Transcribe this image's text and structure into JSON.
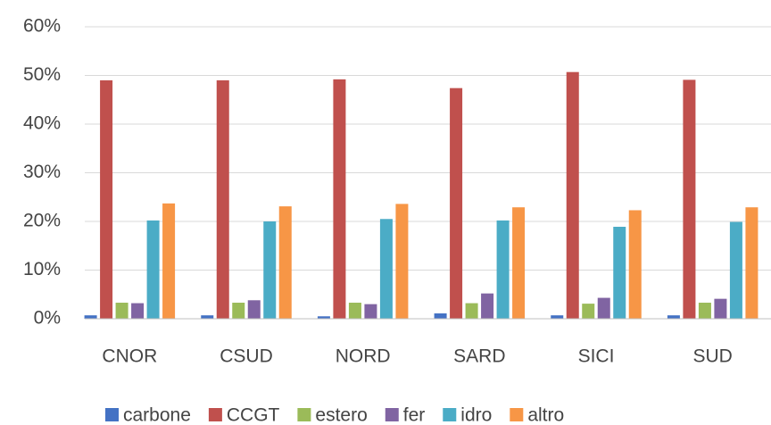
{
  "chart_data": {
    "type": "bar",
    "categories": [
      "CNOR",
      "CSUD",
      "NORD",
      "SARD",
      "SICI",
      "SUD"
    ],
    "series": [
      {
        "name": "carbone",
        "color": "#4472c4",
        "values": [
          0.7,
          0.7,
          0.5,
          1.1,
          0.7,
          0.7
        ]
      },
      {
        "name": "CCGT",
        "color": "#c0504d",
        "values": [
          49,
          49,
          49.2,
          47.4,
          50.7,
          49.1
        ]
      },
      {
        "name": "estero",
        "color": "#9bbb59",
        "values": [
          3.3,
          3.3,
          3.3,
          3.2,
          3.1,
          3.3
        ]
      },
      {
        "name": "fer",
        "color": "#8064a2",
        "values": [
          3.2,
          3.8,
          3.0,
          5.2,
          4.3,
          4.1
        ]
      },
      {
        "name": "idro",
        "color": "#4bacc6",
        "values": [
          20.2,
          20,
          20.5,
          20.2,
          18.9,
          19.9
        ]
      },
      {
        "name": "altro",
        "color": "#f79646",
        "values": [
          23.7,
          23.1,
          23.6,
          22.9,
          22.3,
          22.9
        ]
      }
    ],
    "ylim": [
      0,
      60
    ],
    "yticks": [
      {
        "value": 0,
        "label": "0%"
      },
      {
        "value": 10,
        "label": "10%"
      },
      {
        "value": 20,
        "label": "20%"
      },
      {
        "value": 30,
        "label": "30%"
      },
      {
        "value": 40,
        "label": "40%"
      },
      {
        "value": 50,
        "label": "50%"
      },
      {
        "value": 60,
        "label": "60%"
      }
    ],
    "grid": true,
    "legend": "bottom"
  }
}
